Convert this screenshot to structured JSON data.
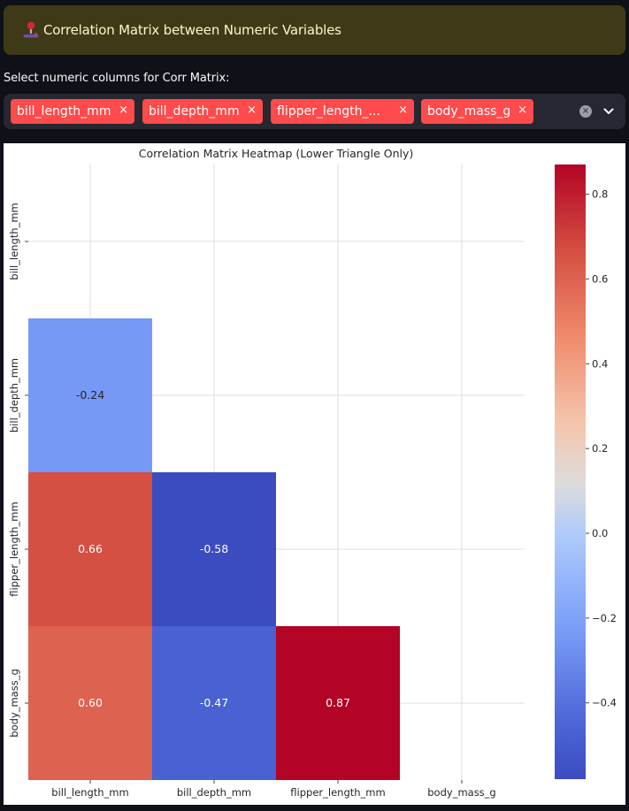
{
  "banner": {
    "icon": "joystick-icon",
    "title": "Correlation Matrix between Numeric Variables",
    "background": "#3e3a17",
    "text_color": "#fff5c8"
  },
  "column_select": {
    "label": "Select numeric columns for Corr Matrix:",
    "chips": [
      {
        "label": "bill_length_mm"
      },
      {
        "label": "bill_depth_mm"
      },
      {
        "label": "flipper_length_..."
      },
      {
        "label": "body_mass_g"
      }
    ],
    "remove_glyph": "×",
    "clear_glyph": "×",
    "chip_color": "#ff4b4b"
  },
  "chart_data": {
    "type": "heatmap",
    "title": "Correlation Matrix Heatmap (Lower Triangle Only)",
    "variables": [
      "bill_length_mm",
      "bill_depth_mm",
      "flipper_length_mm",
      "body_mass_g"
    ],
    "cells": [
      {
        "row": "bill_depth_mm",
        "col": "bill_length_mm",
        "value": -0.24,
        "label": "-0.24"
      },
      {
        "row": "flipper_length_mm",
        "col": "bill_length_mm",
        "value": 0.66,
        "label": "0.66"
      },
      {
        "row": "flipper_length_mm",
        "col": "bill_depth_mm",
        "value": -0.58,
        "label": "-0.58"
      },
      {
        "row": "body_mass_g",
        "col": "bill_length_mm",
        "value": 0.6,
        "label": "0.60"
      },
      {
        "row": "body_mass_g",
        "col": "bill_depth_mm",
        "value": -0.47,
        "label": "-0.47"
      },
      {
        "row": "body_mass_g",
        "col": "flipper_length_mm",
        "value": 0.87,
        "label": "0.87"
      }
    ],
    "masked": "upper triangle and diagonal",
    "colormap": "coolwarm",
    "colorbar": {
      "range": [
        -0.58,
        0.87
      ],
      "ticks": [
        {
          "value": 0.8,
          "label": "0.8"
        },
        {
          "value": 0.6,
          "label": "0.6"
        },
        {
          "value": 0.4,
          "label": "0.4"
        },
        {
          "value": 0.2,
          "label": "0.2"
        },
        {
          "value": 0.0,
          "label": "0.0"
        },
        {
          "value": -0.2,
          "label": "−0.2"
        },
        {
          "value": -0.4,
          "label": "−0.4"
        }
      ]
    },
    "grid": true
  }
}
